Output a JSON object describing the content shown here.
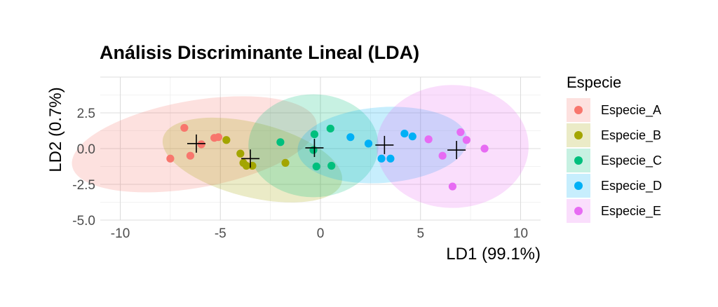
{
  "chart_data": {
    "type": "scatter",
    "title": "Análisis Discriminante Lineal (LDA)",
    "xlabel": "LD1 (99.1%)",
    "ylabel": "LD2 (0.7%)",
    "xlim": [
      -11,
      11
    ],
    "ylim": [
      -5,
      5
    ],
    "x_ticks": [
      -10,
      -5,
      0,
      5,
      10
    ],
    "x_tick_labels": [
      "-10",
      "-5",
      "0",
      "5",
      "10"
    ],
    "y_ticks": [
      -5,
      -2.5,
      0,
      2.5
    ],
    "y_tick_labels": [
      "-5.0",
      "-2.5",
      "0.0",
      "2.5"
    ],
    "grid": true,
    "legend": {
      "title": "Especie",
      "position": "right"
    },
    "series": [
      {
        "name": "Especie_A",
        "color": "#F8766D",
        "points": [
          [
            -6.8,
            1.45
          ],
          [
            -7.5,
            -0.7
          ],
          [
            -6.5,
            -0.5
          ],
          [
            -5.95,
            0.3
          ],
          [
            -5.3,
            0.75
          ],
          [
            -5.1,
            0.8
          ]
        ],
        "centroid": [
          -6.2,
          0.35
        ],
        "ellipse": {
          "cx": -6.3,
          "cy": 0.3,
          "rx": 6.2,
          "ry": 3.05,
          "angle_deg": 10
        }
      },
      {
        "name": "Especie_B",
        "color": "#A3A500",
        "points": [
          [
            -4.7,
            0.6
          ],
          [
            -4.0,
            -0.35
          ],
          [
            -3.85,
            -1.0
          ],
          [
            -3.7,
            -1.2
          ],
          [
            -3.4,
            -1.2
          ],
          [
            -1.75,
            -1.0
          ]
        ],
        "centroid": [
          -3.5,
          -0.7
        ],
        "ellipse": {
          "cx": -3.4,
          "cy": -0.8,
          "rx": 4.6,
          "ry": 2.6,
          "angle_deg": -14
        }
      },
      {
        "name": "Especie_C",
        "color": "#00BF7D",
        "points": [
          [
            -2.0,
            0.45
          ],
          [
            -0.3,
            1.0
          ],
          [
            -0.35,
            -0.1
          ],
          [
            -0.2,
            -1.25
          ],
          [
            0.5,
            1.4
          ],
          [
            0.55,
            -1.2
          ]
        ],
        "centroid": [
          -0.3,
          0.05
        ],
        "ellipse": {
          "cx": -0.35,
          "cy": 0.2,
          "rx": 3.25,
          "ry": 3.6,
          "angle_deg": 0
        }
      },
      {
        "name": "Especie_D",
        "color": "#00B0F6",
        "points": [
          [
            1.5,
            0.8
          ],
          [
            2.4,
            0.35
          ],
          [
            3.05,
            -0.7
          ],
          [
            3.5,
            -0.7
          ],
          [
            4.2,
            1.05
          ],
          [
            4.6,
            0.85
          ]
        ],
        "centroid": [
          3.2,
          0.25
        ],
        "ellipse": {
          "cx": 3.1,
          "cy": 0.25,
          "rx": 4.25,
          "ry": 2.65,
          "angle_deg": 4
        }
      },
      {
        "name": "Especie_E",
        "color": "#E76BF3",
        "points": [
          [
            5.4,
            0.65
          ],
          [
            6.1,
            -0.5
          ],
          [
            6.6,
            -2.65
          ],
          [
            7.0,
            1.15
          ],
          [
            7.3,
            0.6
          ],
          [
            8.2,
            0.0
          ]
        ],
        "centroid": [
          6.8,
          -0.1
        ],
        "ellipse": {
          "cx": 6.6,
          "cy": 0.15,
          "rx": 3.8,
          "ry": 4.3,
          "angle_deg": 0
        }
      }
    ]
  }
}
